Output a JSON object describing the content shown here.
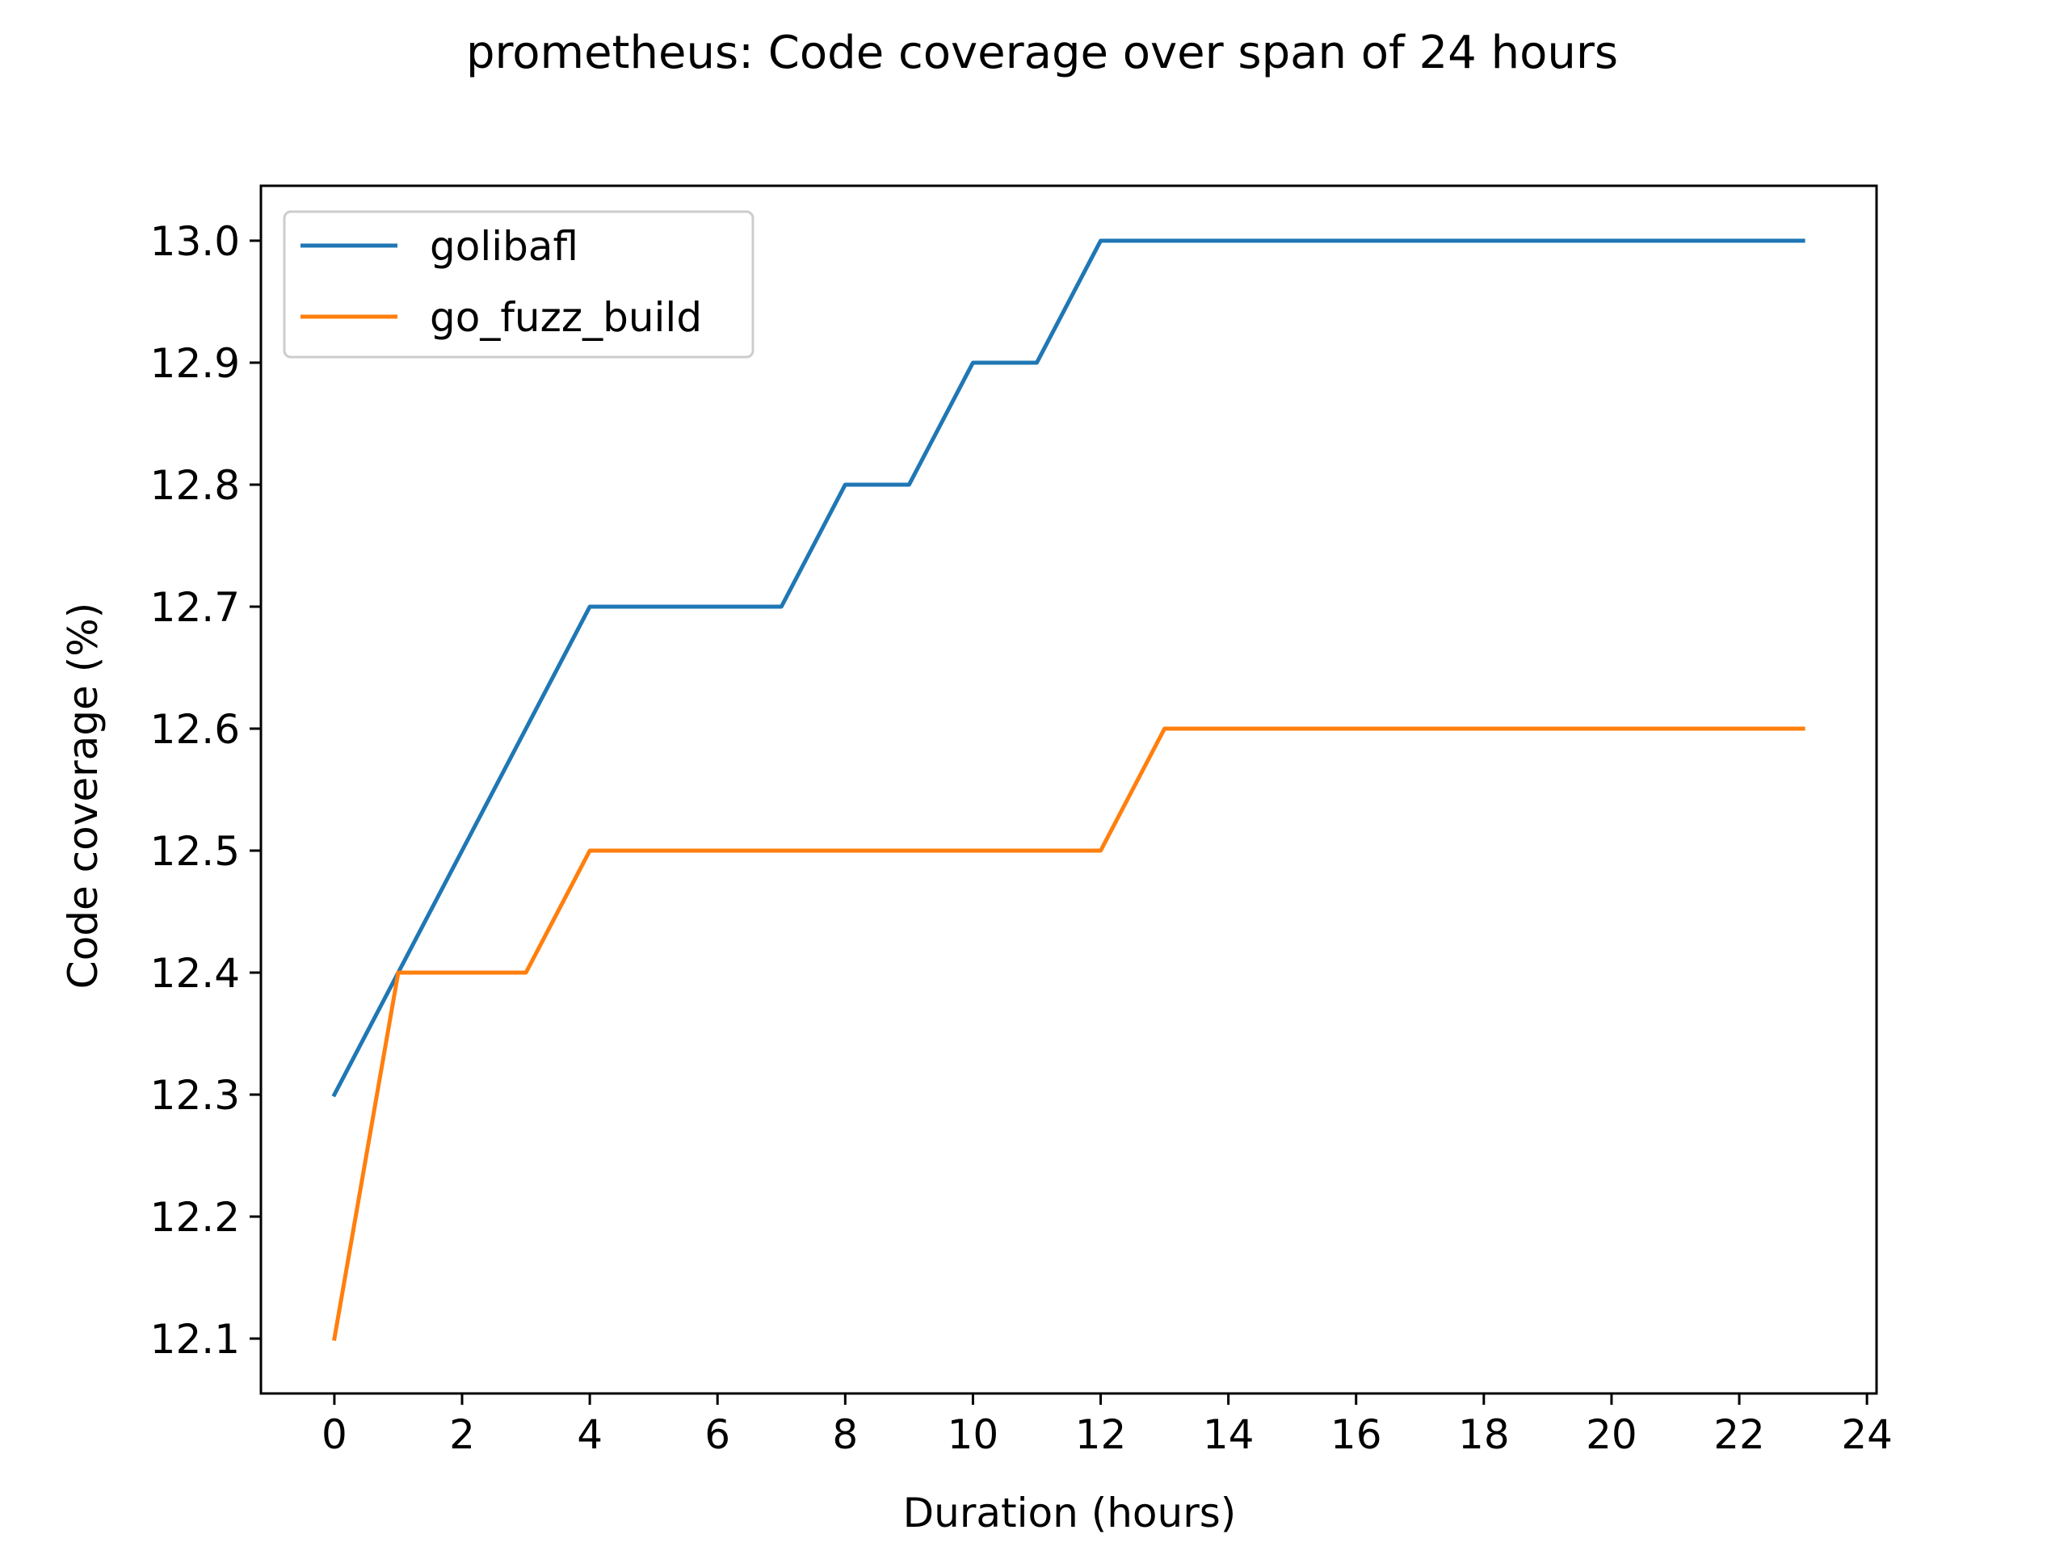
{
  "chart_data": {
    "type": "line",
    "title": "prometheus: Code coverage over span of 24 hours",
    "xlabel": "Duration (hours)",
    "ylabel": "Code coverage (%)",
    "xlim": [
      -1.15,
      24.15
    ],
    "ylim": [
      12.055,
      13.045
    ],
    "xticks": [
      0,
      2,
      4,
      6,
      8,
      10,
      12,
      14,
      16,
      18,
      20,
      22,
      24
    ],
    "yticks": [
      12.1,
      12.2,
      12.3,
      12.4,
      12.5,
      12.6,
      12.7,
      12.8,
      12.9,
      13.0
    ],
    "ytick_labels": [
      "12.1",
      "12.2",
      "12.3",
      "12.4",
      "12.5",
      "12.6",
      "12.7",
      "12.8",
      "12.9",
      "13.0"
    ],
    "grid": false,
    "legend_position": "top-left",
    "x": [
      0,
      1,
      2,
      3,
      4,
      5,
      6,
      7,
      8,
      9,
      10,
      11,
      12,
      13,
      14,
      15,
      16,
      17,
      18,
      19,
      20,
      21,
      22,
      23
    ],
    "series": [
      {
        "name": "golibafl",
        "color": "#1f77b4",
        "values": [
          12.3,
          12.4,
          12.5,
          12.6,
          12.7,
          12.7,
          12.7,
          12.7,
          12.8,
          12.8,
          12.9,
          12.9,
          13.0,
          13.0,
          13.0,
          13.0,
          13.0,
          13.0,
          13.0,
          13.0,
          13.0,
          13.0,
          13.0,
          13.0
        ]
      },
      {
        "name": "go_fuzz_build",
        "color": "#ff7f0e",
        "values": [
          12.1,
          12.4,
          12.4,
          12.4,
          12.5,
          12.5,
          12.5,
          12.5,
          12.5,
          12.5,
          12.5,
          12.5,
          12.5,
          12.6,
          12.6,
          12.6,
          12.6,
          12.6,
          12.6,
          12.6,
          12.6,
          12.6,
          12.6,
          12.6
        ]
      }
    ]
  }
}
